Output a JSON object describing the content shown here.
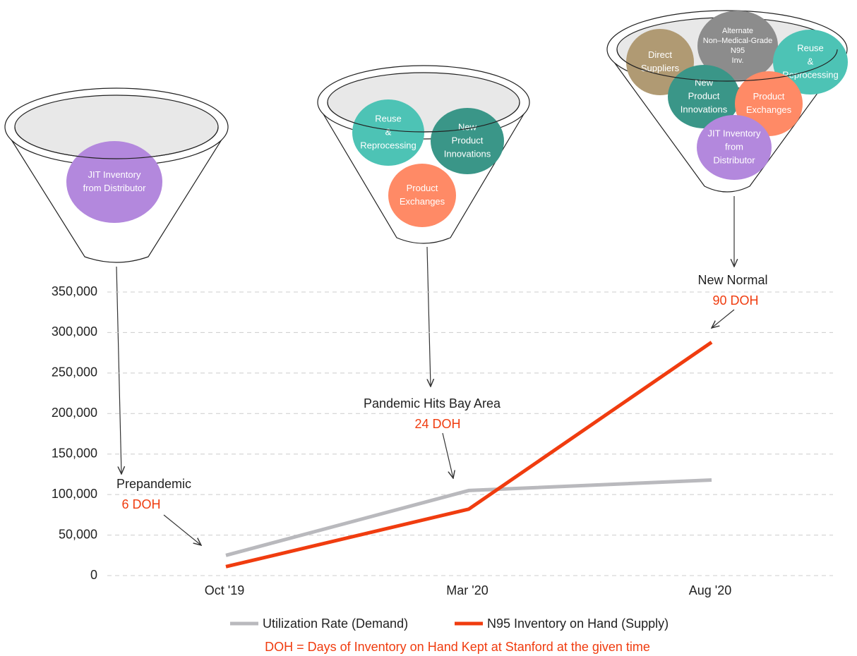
{
  "chart_data": {
    "type": "line",
    "categories": [
      "Oct '19",
      "Mar '20",
      "Aug '20"
    ],
    "series": [
      {
        "name": "Utilization Rate (Demand)",
        "color": "#b9b9bd",
        "values": [
          25000,
          105000,
          118000
        ]
      },
      {
        "name": "N95 Inventory on Hand (Supply)",
        "color": "#f03c0f",
        "values": [
          11000,
          82000,
          288000
        ]
      }
    ],
    "ylim": [
      0,
      350000
    ],
    "yticks": [
      0,
      {
        "value": 50000,
        "label": "50,000"
      },
      {
        "value": 100000,
        "label": "100,000"
      },
      {
        "value": 150000,
        "label": "150,000"
      },
      {
        "value": 200000,
        "label": "200,000"
      },
      {
        "value": 250000,
        "label": "250,000"
      },
      {
        "value": 300000,
        "label": "300,000"
      },
      {
        "value": 350000,
        "label": "350,000"
      }
    ],
    "grid": true,
    "annotations": [
      {
        "label": "Prepandemic",
        "note": "6 DOH"
      },
      {
        "label": "Pandemic Hits Bay Area",
        "note": "24 DOH"
      },
      {
        "label": "New Normal",
        "note": "90 DOH"
      }
    ],
    "footnote": "DOH = Days of Inventory on Hand Kept at Stanford at the given time"
  },
  "funnels": [
    {
      "items": [
        {
          "lines": [
            "JIT Inventory",
            "from Distributor"
          ],
          "color": "#b388dd"
        }
      ]
    },
    {
      "items": [
        {
          "lines": [
            "Reuse",
            "&",
            "Reprocessing"
          ],
          "color": "#4dc3b5"
        },
        {
          "lines": [
            "New",
            "Product",
            "Innovations"
          ],
          "color": "#3a9688"
        },
        {
          "lines": [
            "Product",
            "Exchanges"
          ],
          "color": "#ff8a66"
        }
      ]
    },
    {
      "items": [
        {
          "lines": [
            "Direct",
            "Suppliers"
          ],
          "color": "#b09a73"
        },
        {
          "lines": [
            "Alternate",
            "Non–Medical-Grade",
            "N95",
            "Inv."
          ],
          "color": "#8c8c8c"
        },
        {
          "lines": [
            "Reuse",
            "&",
            "Reprocessing"
          ],
          "color": "#4dc3b5"
        },
        {
          "lines": [
            "New",
            "Product",
            "Innovations"
          ],
          "color": "#3a9688"
        },
        {
          "lines": [
            "Product",
            "Exchanges"
          ],
          "color": "#ff8a66"
        },
        {
          "lines": [
            "JIT Inventory",
            "from",
            "Distributor"
          ],
          "color": "#b388dd"
        }
      ]
    }
  ]
}
